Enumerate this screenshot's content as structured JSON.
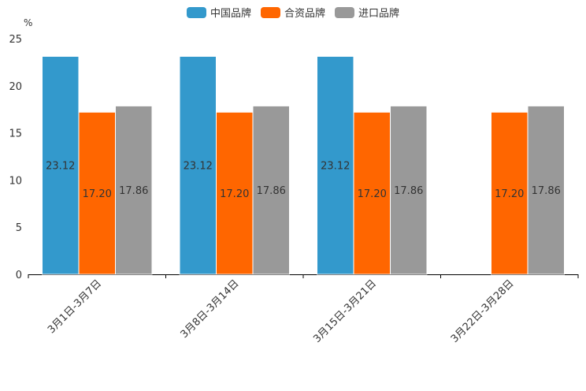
{
  "chart_data": {
    "type": "bar",
    "unit_label": "%",
    "categories": [
      "3月1日-3月7日",
      "3月8日-3月14日",
      "3月15日-3月21日",
      "3月22日-3月28日"
    ],
    "series": [
      {
        "name": "中国品牌",
        "color": "#3399cc",
        "values": [
          23.12,
          23.12,
          23.12,
          null
        ]
      },
      {
        "name": "合资品牌",
        "color": "#ff6600",
        "values": [
          17.2,
          17.2,
          17.2,
          17.2
        ]
      },
      {
        "name": "进口品牌",
        "color": "#999999",
        "values": [
          17.86,
          17.86,
          17.86,
          17.86
        ]
      }
    ],
    "ylim": [
      0,
      25
    ],
    "yticks": [
      0,
      5,
      10,
      15,
      20,
      25
    ],
    "legend_position": "top-center"
  }
}
